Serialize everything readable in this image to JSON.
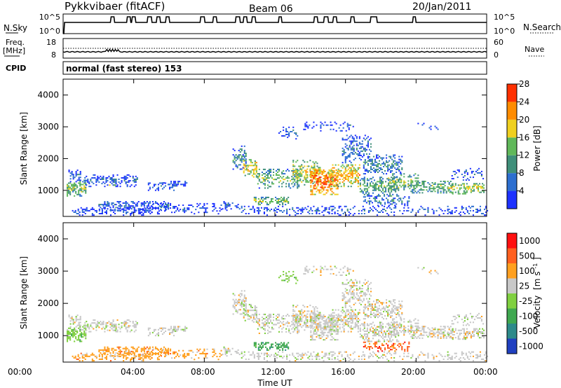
{
  "header": {
    "station": "Pykkvibaer (fitACF)",
    "beam": "Beam 06",
    "date": "20/Jan/2011"
  },
  "noise_panel": {
    "left_label": "N.Sky",
    "right_label": "N.Search",
    "left_ticks": [
      "10^5",
      "10^0"
    ],
    "right_ticks": [
      "10^5",
      "10^0"
    ]
  },
  "freq_panel": {
    "left_label": "Freq.",
    "left_unit": "[MHz]",
    "right_label": "Nave",
    "left_ticks": [
      "18",
      "8"
    ],
    "right_ticks": [
      "60",
      "0"
    ]
  },
  "cpid_panel": {
    "label": "CPID",
    "text": "normal (fast stereo) 153"
  },
  "chart_data": [
    {
      "type": "heatmap",
      "quantity": "Power",
      "ylabel": "Slant Range [km]",
      "ylim": [
        180,
        4500
      ],
      "y_ticks": [
        1000,
        2000,
        3000,
        4000
      ],
      "colorbar_label": "Power [dB]",
      "colorbar_ticks": [
        "4",
        "8",
        "12",
        "16",
        "20",
        "24",
        "28"
      ],
      "colorbar_range": [
        0,
        30
      ],
      "colors": [
        "#1e32ff",
        "#2d6fd0",
        "#3f8f7a",
        "#60b85a",
        "#f0d020",
        "#ff8c00",
        "#ff3000"
      ]
    },
    {
      "type": "heatmap",
      "quantity": "Velocity",
      "ylabel": "Slant Range [km]",
      "ylim": [
        180,
        4500
      ],
      "y_ticks": [
        1000,
        2000,
        3000,
        4000
      ],
      "colorbar_label": "Velocity",
      "colorbar_unit": "[m s",
      "colorbar_unit_exp": "-1",
      "colorbar_unit_close": "]",
      "colorbar_ticks": [
        "1000",
        "500",
        "100",
        "25",
        "-25",
        "-100",
        "-500",
        "-1000"
      ],
      "colors": [
        "#2040c0",
        "#2d8a8a",
        "#3fa850",
        "#80d040",
        "#c8c8c8",
        "#ffa020",
        "#ff6020",
        "#ff1010"
      ]
    }
  ],
  "time_axis": {
    "xlabel": "Time UT",
    "ticks": [
      "00:00",
      "04:00",
      "08:00",
      "12:00",
      "16:00",
      "20:00",
      "00:00"
    ],
    "xlim_hours": [
      0,
      24
    ]
  }
}
